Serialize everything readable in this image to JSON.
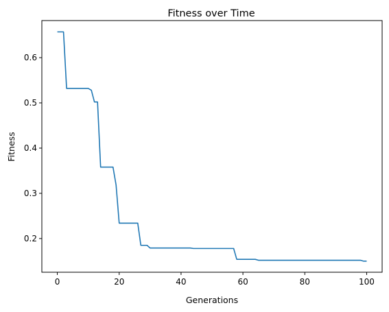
{
  "chart_data": {
    "type": "line",
    "title": "Fitness over Time",
    "xlabel": "Generations",
    "ylabel": "Fitness",
    "xlim": [
      -5,
      105
    ],
    "ylim": [
      0.1255,
      0.682
    ],
    "grid": false,
    "xticks": [
      0,
      20,
      40,
      60,
      80,
      100
    ],
    "xtick_labels": [
      "0",
      "20",
      "40",
      "60",
      "80",
      "100"
    ],
    "yticks": [
      0.2,
      0.3,
      0.4,
      0.5,
      0.6
    ],
    "ytick_labels": [
      "0.2",
      "0.3",
      "0.4",
      "0.5",
      "0.6"
    ],
    "series": [
      {
        "color": "#1f77b4",
        "x": [
          0,
          1,
          2,
          3,
          4,
          5,
          6,
          7,
          8,
          9,
          10,
          11,
          12,
          13,
          14,
          15,
          16,
          17,
          18,
          19,
          20,
          21,
          22,
          23,
          24,
          25,
          26,
          27,
          28,
          29,
          30,
          31,
          32,
          33,
          34,
          35,
          36,
          37,
          38,
          39,
          40,
          41,
          42,
          43,
          44,
          45,
          46,
          47,
          48,
          49,
          50,
          51,
          52,
          53,
          54,
          55,
          56,
          57,
          58,
          59,
          60,
          61,
          62,
          63,
          64,
          65,
          66,
          67,
          68,
          69,
          70,
          71,
          72,
          73,
          74,
          75,
          76,
          77,
          78,
          79,
          80,
          81,
          82,
          83,
          84,
          85,
          86,
          87,
          88,
          89,
          90,
          91,
          92,
          93,
          94,
          95,
          96,
          97,
          98,
          99,
          100
        ],
        "y": [
          0.657,
          0.657,
          0.657,
          0.532,
          0.532,
          0.532,
          0.532,
          0.532,
          0.532,
          0.532,
          0.532,
          0.528,
          0.502,
          0.502,
          0.358,
          0.358,
          0.358,
          0.358,
          0.358,
          0.318,
          0.234,
          0.234,
          0.234,
          0.234,
          0.234,
          0.234,
          0.234,
          0.185,
          0.185,
          0.185,
          0.179,
          0.179,
          0.179,
          0.179,
          0.179,
          0.179,
          0.179,
          0.179,
          0.179,
          0.179,
          0.179,
          0.179,
          0.179,
          0.179,
          0.178,
          0.178,
          0.178,
          0.178,
          0.178,
          0.178,
          0.178,
          0.178,
          0.178,
          0.178,
          0.178,
          0.178,
          0.178,
          0.178,
          0.154,
          0.154,
          0.154,
          0.154,
          0.154,
          0.154,
          0.154,
          0.152,
          0.152,
          0.152,
          0.152,
          0.152,
          0.152,
          0.152,
          0.152,
          0.152,
          0.152,
          0.152,
          0.152,
          0.152,
          0.152,
          0.152,
          0.152,
          0.152,
          0.152,
          0.152,
          0.152,
          0.152,
          0.152,
          0.152,
          0.152,
          0.152,
          0.152,
          0.152,
          0.152,
          0.152,
          0.152,
          0.152,
          0.152,
          0.152,
          0.152,
          0.15,
          0.15
        ]
      }
    ]
  }
}
